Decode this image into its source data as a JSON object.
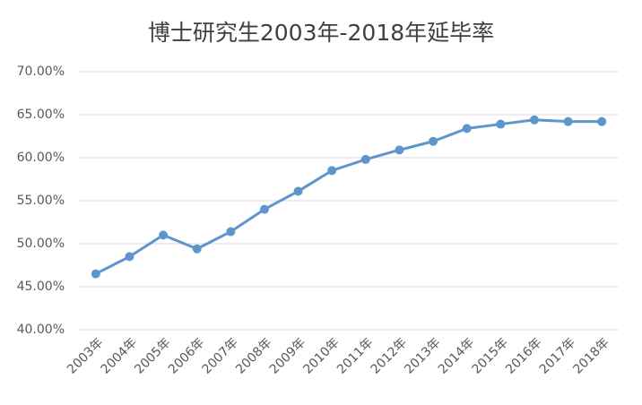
{
  "chart_data": {
    "type": "line",
    "title": "博士研究生2003年-2018年延毕率",
    "categories": [
      "2003年",
      "2004年",
      "2005年",
      "2006年",
      "2007年",
      "2008年",
      "2009年",
      "2010年",
      "2011年",
      "2012年",
      "2013年",
      "2014年",
      "2015年",
      "2016年",
      "2017年",
      "2018年"
    ],
    "values": [
      46.5,
      48.5,
      51.0,
      49.4,
      51.4,
      54.0,
      56.1,
      58.5,
      59.8,
      60.9,
      61.9,
      63.4,
      63.9,
      64.4,
      64.2,
      64.2
    ],
    "color": "#5e95cc",
    "ylim": [
      40,
      70
    ],
    "yticks": [
      {
        "value": 40,
        "label": "40.00%"
      },
      {
        "value": 45,
        "label": "45.00%"
      },
      {
        "value": 50,
        "label": "50.00%"
      },
      {
        "value": 55,
        "label": "55.00%"
      },
      {
        "value": 60,
        "label": "60.00%"
      },
      {
        "value": 65,
        "label": "65.00%"
      },
      {
        "value": 70,
        "label": "70.00%"
      }
    ],
    "grid": true
  }
}
